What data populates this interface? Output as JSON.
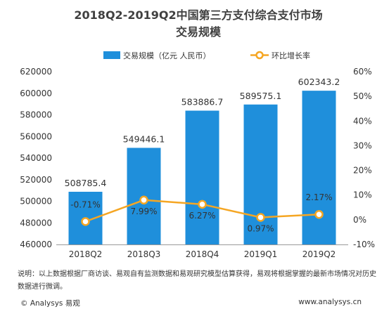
{
  "chart_data": {
    "type": "bar",
    "title_lines": [
      "2018Q2-2019Q2中国第三方支付综合支付市场",
      "交易规模"
    ],
    "categories": [
      "2018Q2",
      "2018Q3",
      "2018Q4",
      "2019Q1",
      "2019Q2"
    ],
    "series": [
      {
        "name": "交易规模（亿元 人民币）",
        "type": "bar",
        "axis": "left",
        "color": "#1f8fdb",
        "values": [
          508785.4,
          549446.1,
          583886.7,
          589575.1,
          602343.2
        ],
        "labels": [
          "508785.4",
          "549446.1",
          "583886.7",
          "589575.1",
          "602343.2"
        ]
      },
      {
        "name": "环比增长率",
        "type": "line",
        "axis": "right",
        "color": "#f5a623",
        "values": [
          -0.71,
          7.99,
          6.27,
          0.97,
          2.17
        ],
        "labels": [
          "-0.71%",
          "7.99%",
          "6.27%",
          "0.97%",
          "2.17%"
        ]
      }
    ],
    "y_left": {
      "min": 460000,
      "max": 620000,
      "ticks": [
        "460000",
        "480000",
        "500000",
        "520000",
        "540000",
        "560000",
        "580000",
        "600000",
        "620000"
      ]
    },
    "y_right": {
      "min": -10,
      "max": 60,
      "ticks": [
        "-10%",
        "0%",
        "10%",
        "20%",
        "30%",
        "40%",
        "50%",
        "60%"
      ]
    },
    "grid": false,
    "legend": "top-center"
  },
  "note": "说明：以上数据根据厂商访谈、易观自有监测数据和易观研究模型估算获得，易观将根据掌握的最新市场情况对历史数据进行微调。",
  "footer": {
    "copyright": "© Analysys 易观",
    "website": "www.analysys.cn"
  }
}
